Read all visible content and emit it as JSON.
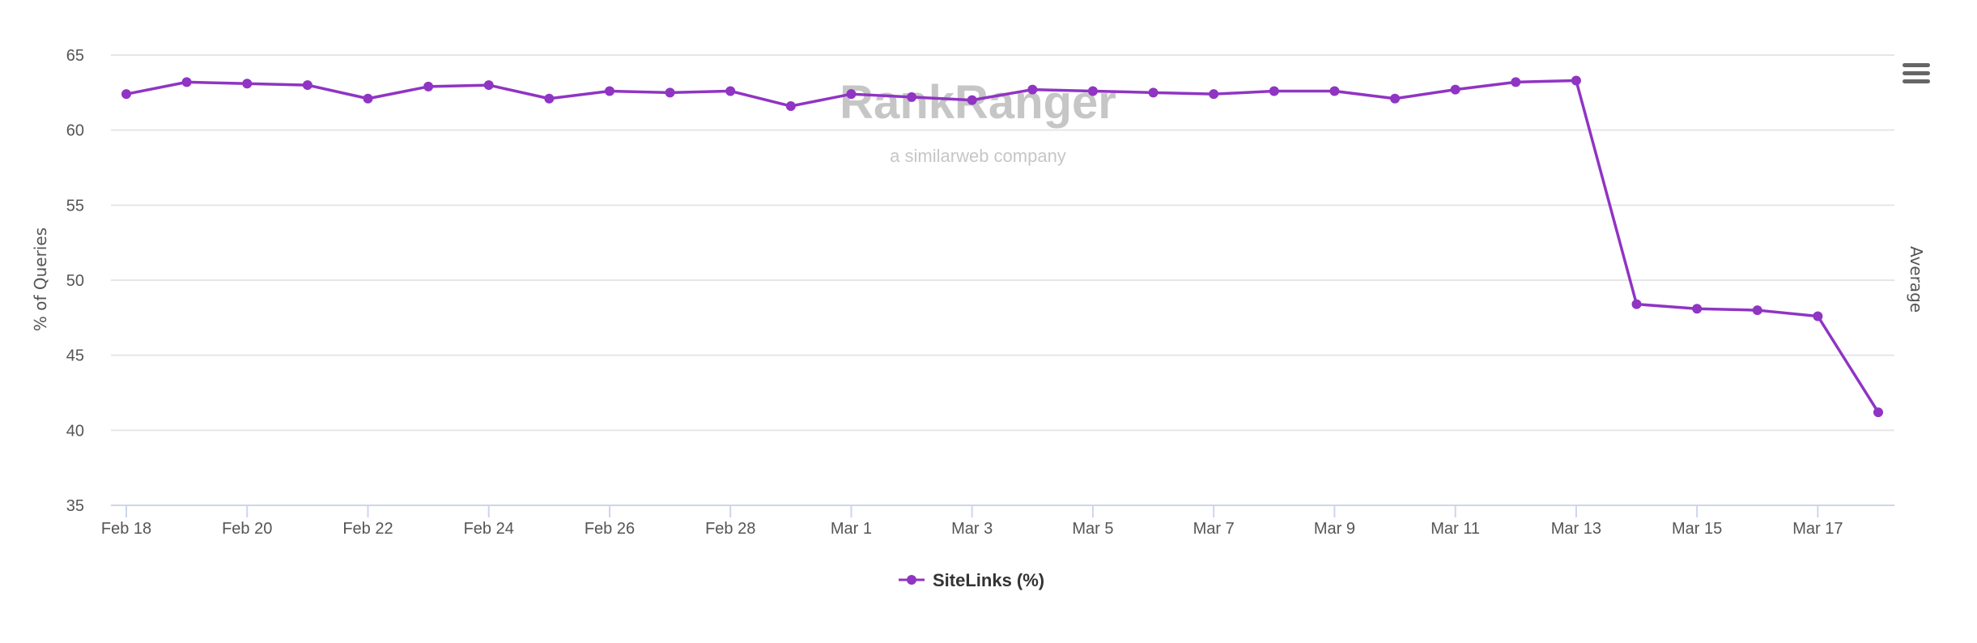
{
  "chart_data": {
    "type": "line",
    "title": "",
    "xlabel": "",
    "ylabel": "% of Queries",
    "secondary_ylabel": "Average",
    "ylim": [
      35,
      65
    ],
    "yticks": [
      35,
      40,
      45,
      50,
      55,
      60,
      65
    ],
    "grid": true,
    "legend_position": "bottom-center",
    "categories": [
      "Feb 18",
      "Feb 19",
      "Feb 20",
      "Feb 21",
      "Feb 22",
      "Feb 23",
      "Feb 24",
      "Feb 25",
      "Feb 26",
      "Feb 27",
      "Feb 28",
      "Feb 29",
      "Mar 1",
      "Mar 2",
      "Mar 3",
      "Mar 4",
      "Mar 5",
      "Mar 6",
      "Mar 7",
      "Mar 8",
      "Mar 9",
      "Mar 10",
      "Mar 11",
      "Mar 12",
      "Mar 13",
      "Mar 14",
      "Mar 15",
      "Mar 16",
      "Mar 17",
      "Mar 18"
    ],
    "xtick_labels": [
      "Feb 18",
      "Feb 20",
      "Feb 22",
      "Feb 24",
      "Feb 26",
      "Feb 28",
      "Mar 1",
      "Mar 3",
      "Mar 5",
      "Mar 7",
      "Mar 9",
      "Mar 11",
      "Mar 13",
      "Mar 15",
      "Mar 17"
    ],
    "series": [
      {
        "name": "SiteLinks (%)",
        "color": "#9034c4",
        "values": [
          62.4,
          63.2,
          63.1,
          63.0,
          62.1,
          62.9,
          63.0,
          62.1,
          62.6,
          62.5,
          62.6,
          61.6,
          62.4,
          62.2,
          62.0,
          62.7,
          62.6,
          62.5,
          62.4,
          62.6,
          62.6,
          62.1,
          62.7,
          63.2,
          63.3,
          48.4,
          48.1,
          48.0,
          47.6,
          41.2
        ]
      }
    ]
  },
  "watermark": {
    "brand": "RankRanger",
    "tagline": "a similarweb company"
  },
  "menu_icon": "hamburger-menu-icon"
}
